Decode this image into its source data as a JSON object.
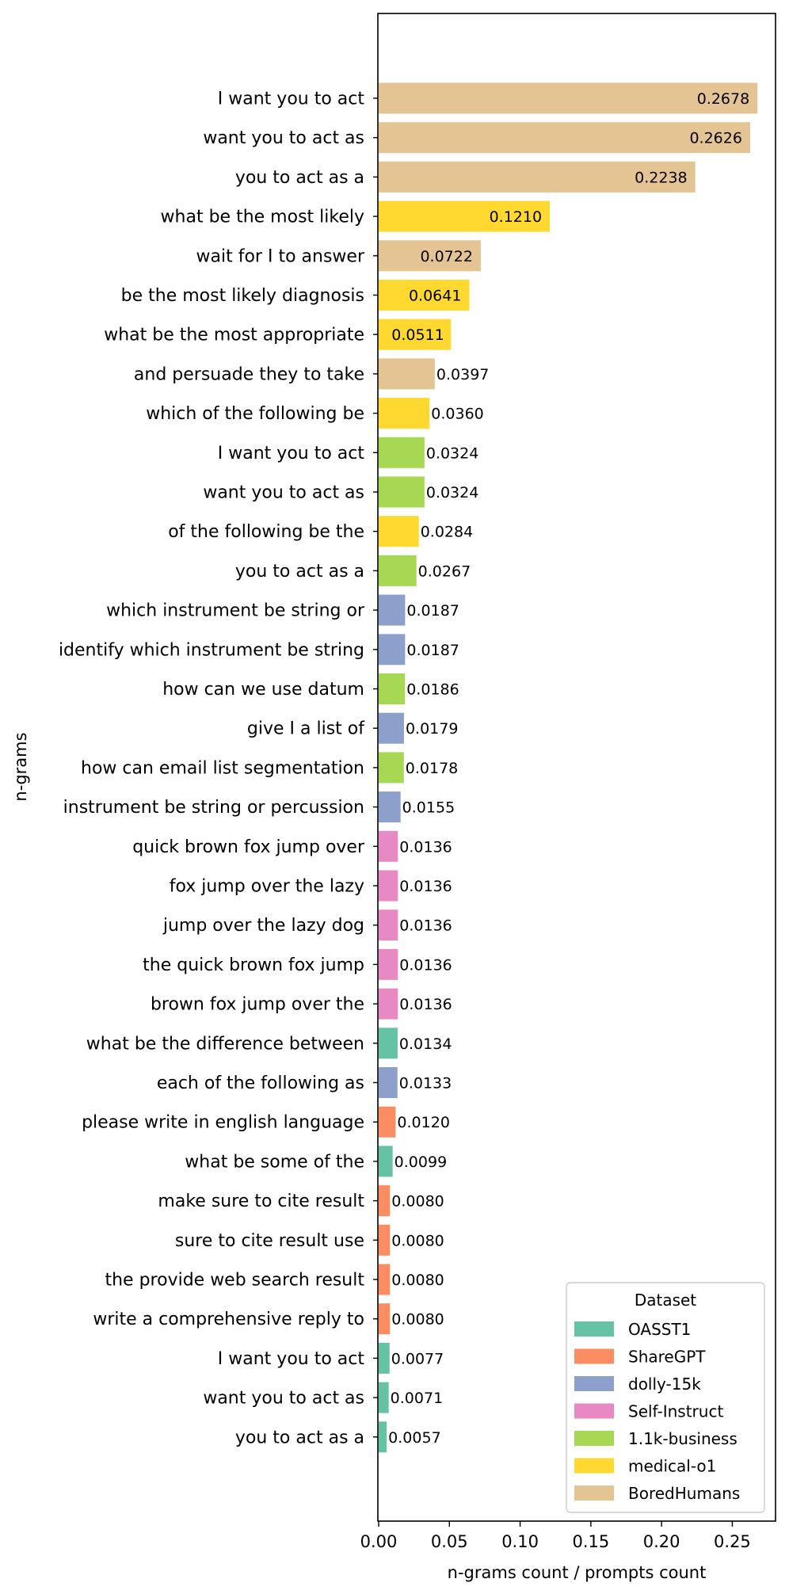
{
  "chart_data": {
    "type": "bar",
    "orientation": "horizontal",
    "xlabel": "n-grams count / prompts count",
    "ylabel": "n-grams",
    "xlim": [
      0,
      0.28
    ],
    "xticks": [
      0.0,
      0.05,
      0.1,
      0.15,
      0.2,
      0.25
    ],
    "xtick_labels": [
      "0.00",
      "0.05",
      "0.10",
      "0.15",
      "0.20",
      "0.25"
    ],
    "grid": false,
    "legend": {
      "title": "Dataset",
      "placement": "lower-right",
      "entries": [
        {
          "name": "OASST1",
          "color": "#66c2a5"
        },
        {
          "name": "ShareGPT",
          "color": "#fc8d62"
        },
        {
          "name": "dolly-15k",
          "color": "#8da0cb"
        },
        {
          "name": "Self-Instruct",
          "color": "#e78ac3"
        },
        {
          "name": "1.1k-business",
          "color": "#a6d854"
        },
        {
          "name": "medical-o1",
          "color": "#ffd92f"
        },
        {
          "name": "BoredHumans",
          "color": "#e5c494"
        }
      ]
    },
    "bars": [
      {
        "label": "I want you to act",
        "value": 0.2678,
        "value_label": "0.2678",
        "dataset": "BoredHumans"
      },
      {
        "label": "want you to act as",
        "value": 0.2626,
        "value_label": "0.2626",
        "dataset": "BoredHumans"
      },
      {
        "label": "you to act as a",
        "value": 0.2238,
        "value_label": "0.2238",
        "dataset": "BoredHumans"
      },
      {
        "label": "what be the most likely",
        "value": 0.121,
        "value_label": "0.1210",
        "dataset": "medical-o1"
      },
      {
        "label": "wait for I to answer",
        "value": 0.0722,
        "value_label": "0.0722",
        "dataset": "BoredHumans"
      },
      {
        "label": "be the most likely diagnosis",
        "value": 0.0641,
        "value_label": "0.0641",
        "dataset": "medical-o1"
      },
      {
        "label": "what be the most appropriate",
        "value": 0.0511,
        "value_label": "0.0511",
        "dataset": "medical-o1"
      },
      {
        "label": "and persuade they to take",
        "value": 0.0397,
        "value_label": "0.0397",
        "dataset": "BoredHumans"
      },
      {
        "label": "which of the following be",
        "value": 0.036,
        "value_label": "0.0360",
        "dataset": "medical-o1"
      },
      {
        "label": "I want you to act",
        "value": 0.0324,
        "value_label": "0.0324",
        "dataset": "1.1k-business"
      },
      {
        "label": "want you to act as",
        "value": 0.0324,
        "value_label": "0.0324",
        "dataset": "1.1k-business"
      },
      {
        "label": "of the following be the",
        "value": 0.0284,
        "value_label": "0.0284",
        "dataset": "medical-o1"
      },
      {
        "label": "you to act as a",
        "value": 0.0267,
        "value_label": "0.0267",
        "dataset": "1.1k-business"
      },
      {
        "label": "which instrument be string or",
        "value": 0.0187,
        "value_label": "0.0187",
        "dataset": "dolly-15k"
      },
      {
        "label": "identify which instrument be string",
        "value": 0.0187,
        "value_label": "0.0187",
        "dataset": "dolly-15k"
      },
      {
        "label": "how can we use datum",
        "value": 0.0186,
        "value_label": "0.0186",
        "dataset": "1.1k-business"
      },
      {
        "label": "give I a list of",
        "value": 0.0179,
        "value_label": "0.0179",
        "dataset": "dolly-15k"
      },
      {
        "label": "how can email list segmentation",
        "value": 0.0178,
        "value_label": "0.0178",
        "dataset": "1.1k-business"
      },
      {
        "label": "instrument be string or percussion",
        "value": 0.0155,
        "value_label": "0.0155",
        "dataset": "dolly-15k"
      },
      {
        "label": "quick brown fox jump over",
        "value": 0.0136,
        "value_label": "0.0136",
        "dataset": "Self-Instruct"
      },
      {
        "label": "fox jump over the lazy",
        "value": 0.0136,
        "value_label": "0.0136",
        "dataset": "Self-Instruct"
      },
      {
        "label": "jump over the lazy dog",
        "value": 0.0136,
        "value_label": "0.0136",
        "dataset": "Self-Instruct"
      },
      {
        "label": "the quick brown fox jump",
        "value": 0.0136,
        "value_label": "0.0136",
        "dataset": "Self-Instruct"
      },
      {
        "label": "brown fox jump over the",
        "value": 0.0136,
        "value_label": "0.0136",
        "dataset": "Self-Instruct"
      },
      {
        "label": "what be the difference between",
        "value": 0.0134,
        "value_label": "0.0134",
        "dataset": "OASST1"
      },
      {
        "label": "each of the following as",
        "value": 0.0133,
        "value_label": "0.0133",
        "dataset": "dolly-15k"
      },
      {
        "label": "please write in english language",
        "value": 0.012,
        "value_label": "0.0120",
        "dataset": "ShareGPT"
      },
      {
        "label": "what be some of the",
        "value": 0.0099,
        "value_label": "0.0099",
        "dataset": "OASST1"
      },
      {
        "label": "make sure to cite result",
        "value": 0.008,
        "value_label": "0.0080",
        "dataset": "ShareGPT"
      },
      {
        "label": "sure to cite result use",
        "value": 0.008,
        "value_label": "0.0080",
        "dataset": "ShareGPT"
      },
      {
        "label": "the provide web search result",
        "value": 0.008,
        "value_label": "0.0080",
        "dataset": "ShareGPT"
      },
      {
        "label": "write a comprehensive reply to",
        "value": 0.008,
        "value_label": "0.0080",
        "dataset": "ShareGPT"
      },
      {
        "label": "I want you to act",
        "value": 0.0077,
        "value_label": "0.0077",
        "dataset": "OASST1"
      },
      {
        "label": "want you to act as",
        "value": 0.0071,
        "value_label": "0.0071",
        "dataset": "OASST1"
      },
      {
        "label": "you to act as a",
        "value": 0.0057,
        "value_label": "0.0057",
        "dataset": "OASST1"
      }
    ]
  }
}
